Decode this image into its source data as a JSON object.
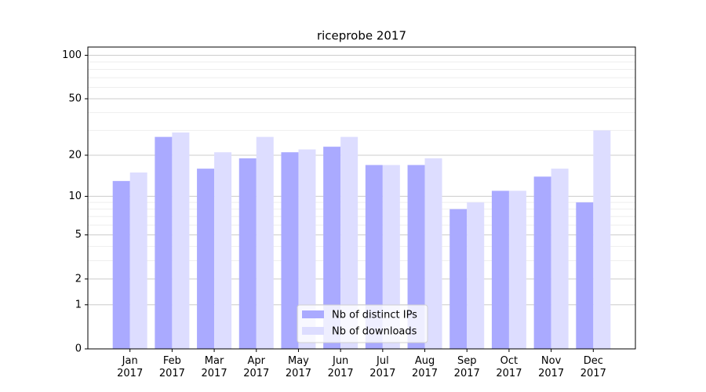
{
  "chart_data": {
    "type": "bar",
    "title": "riceprobe 2017",
    "categories": [
      "Jan\n2017",
      "Feb\n2017",
      "Mar\n2017",
      "Apr\n2017",
      "May\n2017",
      "Jun\n2017",
      "Jul\n2017",
      "Aug\n2017",
      "Sep\n2017",
      "Oct\n2017",
      "Nov\n2017",
      "Dec\n2017"
    ],
    "series": [
      {
        "name": "Nb of distinct IPs",
        "color": "#aaaaff",
        "values": [
          13,
          27,
          16,
          19,
          21,
          23,
          17,
          17,
          8,
          11,
          14,
          9
        ]
      },
      {
        "name": "Nb of downloads",
        "color": "#ddddff",
        "values": [
          15,
          29,
          21,
          27,
          22,
          27,
          17,
          19,
          9,
          11,
          16,
          30
        ]
      }
    ],
    "yscale": "log1p",
    "ylim": [
      0,
      114
    ],
    "yticks": [
      0,
      1,
      2,
      5,
      10,
      20,
      50,
      100
    ],
    "minor_yticks": [
      3,
      4,
      6,
      7,
      8,
      9,
      30,
      40,
      60,
      70,
      80,
      90
    ],
    "grid": true,
    "legend": "lower center"
  }
}
